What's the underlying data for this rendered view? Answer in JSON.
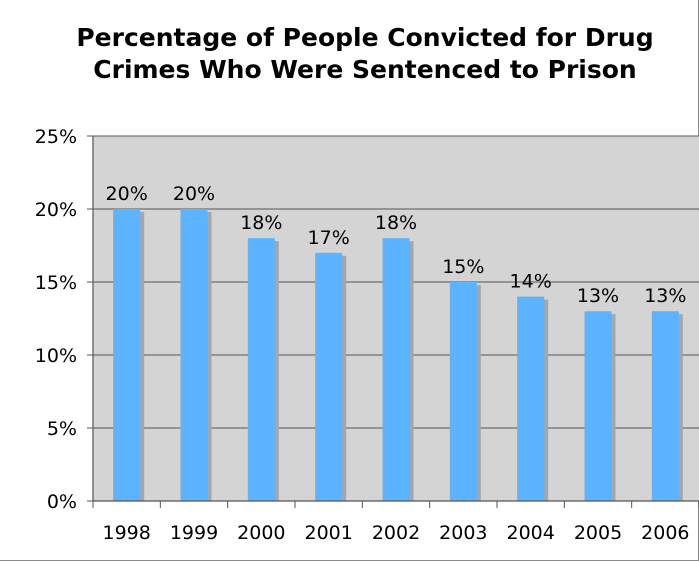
{
  "chart_data": {
    "type": "bar",
    "title": "Percentage of People Convicted for Drug\nCrimes Who Were Sentenced to Prison",
    "xlabel": "",
    "ylabel": "",
    "categories": [
      "1998",
      "1999",
      "2000",
      "2001",
      "2002",
      "2003",
      "2004",
      "2005",
      "2006"
    ],
    "values": [
      20,
      20,
      18,
      17,
      18,
      15,
      14,
      13,
      13
    ],
    "data_labels": [
      "20%",
      "20%",
      "18%",
      "17%",
      "18%",
      "15%",
      "14%",
      "13%",
      "13%"
    ],
    "ylim": [
      0,
      25
    ],
    "yticks": [
      0,
      5,
      10,
      15,
      20,
      25
    ],
    "ytick_labels": [
      "0%",
      "5%",
      "10%",
      "15%",
      "20%",
      "25%"
    ],
    "grid": true,
    "legend": "none",
    "colors": {
      "bar": "#5cb3ff",
      "bar_shadow": "#a6a6a6",
      "plot_background": "#d4d4d4",
      "gridline": "#555555",
      "axis": "#555555"
    }
  }
}
